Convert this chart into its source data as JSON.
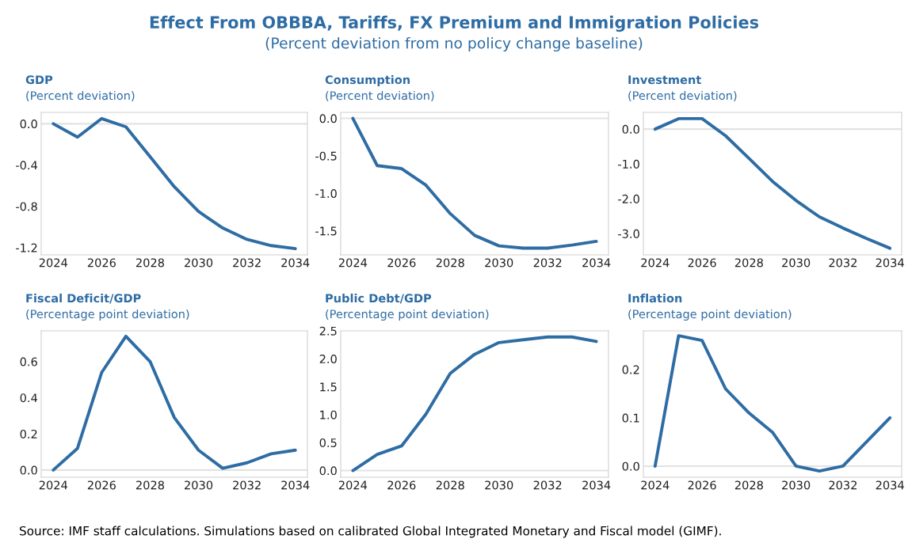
{
  "chart_data": [
    {
      "type": "other",
      "title": "Effect From OBBBA, Tariffs, FX Premium and Immigration Policies",
      "subtitle": "(Percent deviation from no policy change baseline)",
      "annotations": [
        "Source: IMF staff calculations. Simulations based on calibrated Global Integrated Monetary and Fiscal model (GIMF)."
      ]
    },
    {
      "type": "line",
      "title": "GDP",
      "subtitle": "(Percent deviation)",
      "x": [
        2024,
        2025,
        2026,
        2027,
        2028,
        2029,
        2030,
        2031,
        2032,
        2033,
        2034
      ],
      "series": [
        {
          "color": "#2e6ca4",
          "values": [
            0.0,
            -0.13,
            0.05,
            -0.03,
            -0.32,
            -0.61,
            -0.85,
            -1.01,
            -1.12,
            -1.18,
            -1.21
          ]
        }
      ],
      "xlim": [
        2023.5,
        2034.5
      ],
      "xticks": [
        2024,
        2026,
        2028,
        2030,
        2032,
        2034
      ],
      "ylim": [
        -1.27,
        0.11
      ],
      "yticks": [
        {
          "value": 0,
          "label": "0.0"
        },
        -0.4,
        -0.8,
        -1.2
      ],
      "ref_lines": [
        {
          "axis": "y",
          "value": 0,
          "color": "#e3e3e3"
        }
      ],
      "grid": false,
      "legend": false
    },
    {
      "type": "line",
      "title": "Consumption",
      "subtitle": "(Percent deviation)",
      "x": [
        2024,
        2025,
        2026,
        2027,
        2028,
        2029,
        2030,
        2031,
        2032,
        2033,
        2034
      ],
      "series": [
        {
          "color": "#2e6ca4",
          "values": [
            0.0,
            -0.63,
            -0.67,
            -0.89,
            -1.27,
            -1.56,
            -1.7,
            -1.73,
            -1.73,
            -1.69,
            -1.64
          ]
        }
      ],
      "xlim": [
        2023.5,
        2034.5
      ],
      "xticks": [
        2024,
        2026,
        2028,
        2030,
        2032,
        2034
      ],
      "ylim": [
        -1.82,
        0.08
      ],
      "yticks": [
        {
          "value": 0,
          "label": "0.0"
        },
        -0.5,
        {
          "value": -1,
          "label": "-1.0"
        },
        -1.5
      ],
      "ref_lines": [
        {
          "axis": "y",
          "value": 0,
          "color": "#e3e3e3"
        }
      ],
      "grid": false,
      "legend": false
    },
    {
      "type": "line",
      "title": "Investment",
      "subtitle": "(Percent deviation)",
      "x": [
        2024,
        2025,
        2026,
        2027,
        2028,
        2029,
        2030,
        2031,
        2032,
        2033,
        2034
      ],
      "series": [
        {
          "color": "#2e6ca4",
          "values": [
            0.0,
            0.3,
            0.3,
            -0.19,
            -0.84,
            -1.5,
            -2.05,
            -2.52,
            -2.84,
            -3.14,
            -3.42
          ]
        }
      ],
      "xlim": [
        2023.5,
        2034.5
      ],
      "xticks": [
        2024,
        2026,
        2028,
        2030,
        2032,
        2034
      ],
      "ylim": [
        -3.61,
        0.48
      ],
      "yticks": [
        {
          "value": 0,
          "label": "0.0"
        },
        {
          "value": -1,
          "label": "-1.0"
        },
        {
          "value": -2,
          "label": "-2.0"
        },
        {
          "value": -3,
          "label": "-3.0"
        }
      ],
      "ref_lines": [
        {
          "axis": "y",
          "value": 0,
          "color": "#e3e3e3"
        }
      ],
      "grid": false,
      "legend": false
    },
    {
      "type": "line",
      "title": "Fiscal Deficit/GDP",
      "subtitle": "(Percentage point deviation)",
      "x": [
        2024,
        2025,
        2026,
        2027,
        2028,
        2029,
        2030,
        2031,
        2032,
        2033,
        2034
      ],
      "series": [
        {
          "color": "#2e6ca4",
          "values": [
            0.0,
            0.12,
            0.54,
            0.74,
            0.6,
            0.29,
            0.11,
            0.01,
            0.04,
            0.09,
            0.11
          ]
        }
      ],
      "xlim": [
        2023.5,
        2034.5
      ],
      "xticks": [
        2024,
        2026,
        2028,
        2030,
        2032,
        2034
      ],
      "ylim": [
        -0.04,
        0.77
      ],
      "yticks": [
        {
          "value": 0,
          "label": "0.0"
        },
        0.2,
        0.4,
        0.6
      ],
      "ref_lines": [
        {
          "axis": "y",
          "value": 0,
          "color": "#e3e3e3"
        }
      ],
      "grid": false,
      "legend": false
    },
    {
      "type": "line",
      "title": "Public Debt/GDP",
      "subtitle": "(Percentage point deviation)",
      "x": [
        2024,
        2025,
        2026,
        2027,
        2028,
        2029,
        2030,
        2031,
        2032,
        2033,
        2034
      ],
      "series": [
        {
          "color": "#2e6ca4",
          "values": [
            0.0,
            0.29,
            0.44,
            1.01,
            1.74,
            2.08,
            2.29,
            2.34,
            2.39,
            2.39,
            2.31
          ]
        }
      ],
      "xlim": [
        2023.5,
        2034.5
      ],
      "xticks": [
        2024,
        2026,
        2028,
        2030,
        2032,
        2034
      ],
      "ylim": [
        -0.12,
        2.5
      ],
      "yticks": [
        {
          "value": 0,
          "label": "0.0"
        },
        0.5,
        {
          "value": 1,
          "label": "1.0"
        },
        1.5,
        {
          "value": 2,
          "label": "2.0"
        },
        2.5
      ],
      "ref_lines": [
        {
          "axis": "y",
          "value": 0,
          "color": "#e3e3e3"
        }
      ],
      "grid": false,
      "legend": false
    },
    {
      "type": "line",
      "title": "Inflation",
      "subtitle": "(Percentage point deviation)",
      "x": [
        2024,
        2025,
        2026,
        2027,
        2028,
        2029,
        2030,
        2031,
        2032,
        2033,
        2034
      ],
      "series": [
        {
          "color": "#2e6ca4",
          "values": [
            0.0,
            0.27,
            0.26,
            0.16,
            0.11,
            0.07,
            0.0,
            -0.01,
            0.0,
            0.05,
            0.1
          ]
        }
      ],
      "xlim": [
        2023.5,
        2034.5
      ],
      "xticks": [
        2024,
        2026,
        2028,
        2030,
        2032,
        2034
      ],
      "ylim": [
        -0.023,
        0.28
      ],
      "yticks": [
        {
          "value": 0,
          "label": "0.0"
        },
        0.1,
        0.2
      ],
      "ref_lines": [
        {
          "axis": "y",
          "value": 0,
          "color": "#e3e3e3"
        }
      ],
      "grid": false,
      "legend": false
    }
  ]
}
